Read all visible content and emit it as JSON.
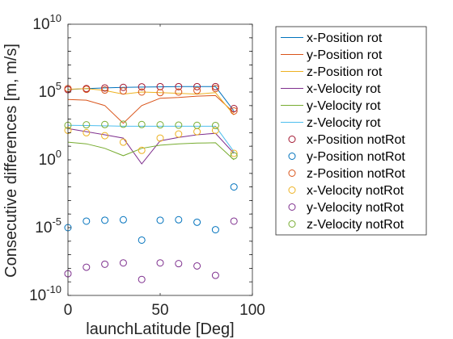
{
  "chart_data": {
    "type": "line",
    "xlabel": "launchLatitude [Deg]",
    "ylabel": "Consecutive differences [m, m/s]",
    "xlim": [
      0,
      100
    ],
    "ylim": [
      1e-10,
      10000000000.0
    ],
    "yscale": "log",
    "x_ticks": [
      "0",
      "50",
      "100"
    ],
    "y_ticks": [
      {
        "base": "10",
        "exp": "-10",
        "value": 1e-10
      },
      {
        "base": "10",
        "exp": "-5",
        "value": 1e-05
      },
      {
        "base": "10",
        "exp": "0",
        "value": 1
      },
      {
        "base": "10",
        "exp": "5",
        "value": 100000.0
      },
      {
        "base": "10",
        "exp": "10",
        "value": 10000000000.0
      }
    ],
    "grid": false,
    "legend_position": "outside-right",
    "x": [
      0,
      10,
      20,
      30,
      40,
      50,
      60,
      70,
      80,
      90
    ],
    "series": [
      {
        "name": "x-Position rot",
        "style": "line",
        "color": "#0072bd",
        "values": [
          150000.0,
          180000.0,
          200000.0,
          220000.0,
          230000.0,
          240000.0,
          250000.0,
          250000.0,
          250000.0,
          4000
        ]
      },
      {
        "name": "y-Position rot",
        "style": "line",
        "color": "#d95319",
        "values": [
          28000.0,
          25000.0,
          10000.0,
          500,
          10000.0,
          35000.0,
          40000.0,
          50000.0,
          55000.0,
          3000
        ]
      },
      {
        "name": "z-Position rot",
        "style": "line",
        "color": "#edb120",
        "values": [
          160000.0,
          180000.0,
          130000.0,
          70000.0,
          100000.0,
          90000.0,
          80000.0,
          70000.0,
          90000.0,
          2000
        ]
      },
      {
        "name": "x-Velocity rot",
        "style": "line",
        "color": "#7e2f8e",
        "values": [
          200,
          120,
          70,
          40,
          0.5,
          25,
          45,
          70,
          90,
          3
        ]
      },
      {
        "name": "y-Velocity rot",
        "style": "line",
        "color": "#77ac30",
        "values": [
          20,
          15,
          7,
          2,
          7,
          12,
          15,
          17,
          18,
          1
        ]
      },
      {
        "name": "z-Velocity rot",
        "style": "line",
        "color": "#4dbeee",
        "values": [
          350,
          340,
          320,
          300,
          300,
          300,
          300,
          300,
          300,
          4
        ]
      },
      {
        "name": "x-Position notRot",
        "style": "marker",
        "color": "#a2142f",
        "values": [
          150000.0,
          180000.0,
          200000.0,
          220000.0,
          240000.0,
          250000.0,
          250000.0,
          250000.0,
          250000.0,
          6000
        ]
      },
      {
        "name": "y-Position notRot",
        "style": "marker",
        "color": "#0072bd",
        "values": [
          1e-05,
          3e-05,
          3.5e-05,
          3.8e-05,
          1.2e-06,
          3.5e-05,
          3.8e-05,
          2.5e-05,
          7e-06,
          0.01
        ]
      },
      {
        "name": "z-Position notRot",
        "style": "marker",
        "color": "#d95319",
        "values": [
          180000.0,
          160000.0,
          140000.0,
          120000.0,
          100000.0,
          90000.0,
          100000.0,
          130000.0,
          180000.0,
          4000
        ]
      },
      {
        "name": "x-Velocity notRot",
        "style": "marker",
        "color": "#edb120",
        "values": [
          150,
          100,
          60,
          20,
          5,
          40,
          80,
          120,
          150,
          3
        ]
      },
      {
        "name": "y-Velocity notRot",
        "style": "marker",
        "color": "#7e2f8e",
        "values": [
          4e-09,
          1.2e-08,
          2e-08,
          2.5e-08,
          1.5e-09,
          2.5e-08,
          2.2e-08,
          1.5e-08,
          3e-09,
          3e-05
        ]
      },
      {
        "name": "z-Velocity notRot",
        "style": "marker",
        "color": "#77ac30",
        "values": [
          350,
          380,
          400,
          420,
          400,
          380,
          360,
          350,
          340,
          2
        ]
      }
    ]
  }
}
